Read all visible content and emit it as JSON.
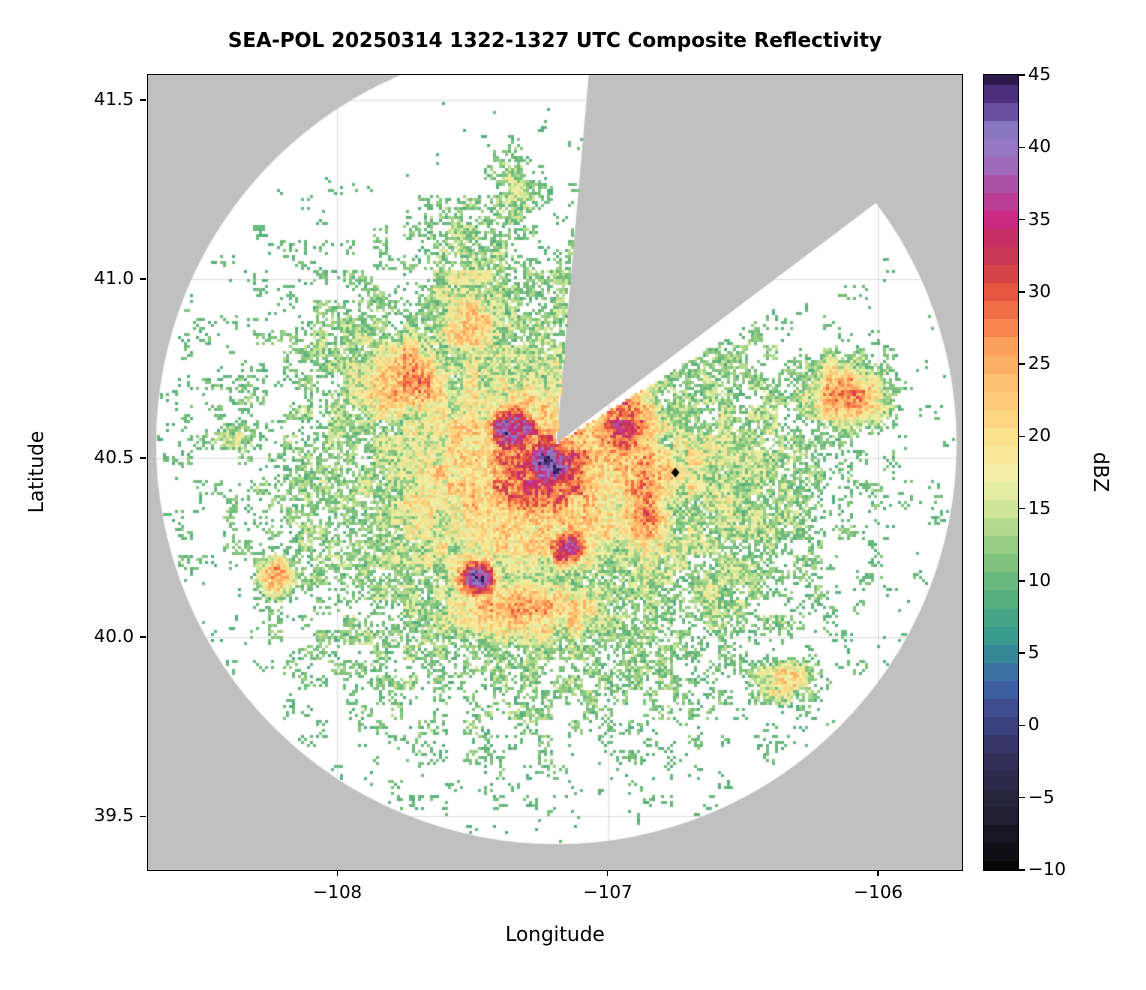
{
  "chart_data": {
    "type": "heatmap",
    "title": "SEA-POL 20250314 1322-1327 UTC Composite Reflectivity",
    "xlabel": "Longitude",
    "ylabel": "Latitude",
    "xlim": [
      -108.7,
      -105.69
    ],
    "ylim": [
      39.35,
      41.57
    ],
    "xticks": [
      -108,
      -107,
      -106
    ],
    "yticks": [
      39.5,
      40.0,
      40.5,
      41.0,
      41.5
    ],
    "grid": true,
    "background_outside_scan": "#c0c0c0",
    "background_scanned": "#ffffff",
    "radar": {
      "center_lon": -107.19,
      "center_lat": 40.54,
      "range_deg_lon": 1.48,
      "missing_sector_azimuth_deg": [
        5,
        53
      ],
      "clear_sliver_azimuth_deg": [
        53,
        58
      ]
    },
    "marker": {
      "lon": -106.75,
      "lat": 40.46,
      "symbol": "diamond",
      "color": "#000000"
    },
    "colorbar": {
      "label": "dBZ",
      "min": -10,
      "max": 45,
      "band_step_dbz": 1.25,
      "ticks": [
        45,
        40,
        35,
        30,
        25,
        20,
        15,
        10,
        5,
        0,
        -5,
        -10
      ],
      "stops": [
        [
          -10,
          "#070707"
        ],
        [
          -6,
          "#221f33"
        ],
        [
          -2,
          "#34315c"
        ],
        [
          1,
          "#3e4a8e"
        ],
        [
          3,
          "#3c66a8"
        ],
        [
          6,
          "#35998f"
        ],
        [
          9,
          "#57b07c"
        ],
        [
          12,
          "#8cc87f"
        ],
        [
          15,
          "#cfe69a"
        ],
        [
          17,
          "#f0f0aa"
        ],
        [
          20,
          "#fbe18c"
        ],
        [
          23,
          "#fdc775"
        ],
        [
          26,
          "#fca55f"
        ],
        [
          28,
          "#f67d4a"
        ],
        [
          30,
          "#e65540"
        ],
        [
          32,
          "#c93a4d"
        ],
        [
          34,
          "#c52d68"
        ],
        [
          35,
          "#cb2b83"
        ],
        [
          37,
          "#b3479f"
        ],
        [
          39,
          "#9b6fbd"
        ],
        [
          41,
          "#8f7fc6"
        ],
        [
          43,
          "#5e3d96"
        ],
        [
          45,
          "#2f1a4e"
        ]
      ]
    },
    "echo_threshold_dbz": 9,
    "noise_amp_dbz": 8.5,
    "storm_cells": [
      {
        "lon": -107.22,
        "lat": 40.48,
        "sx": 0.1,
        "sy": 0.07,
        "peak": 44
      },
      {
        "lon": -107.35,
        "lat": 40.58,
        "sx": 0.09,
        "sy": 0.07,
        "peak": 40
      },
      {
        "lon": -107.25,
        "lat": 40.47,
        "sx": 0.24,
        "sy": 0.16,
        "peak": 33
      },
      {
        "lon": -107.3,
        "lat": 40.45,
        "sx": 0.5,
        "sy": 0.33,
        "peak": 24
      },
      {
        "lon": -107.25,
        "lat": 40.42,
        "sx": 0.85,
        "sy": 0.52,
        "peak": 16
      },
      {
        "lon": -107.75,
        "lat": 40.72,
        "sx": 0.18,
        "sy": 0.11,
        "peak": 26
      },
      {
        "lon": -107.95,
        "lat": 40.8,
        "sx": 0.2,
        "sy": 0.1,
        "peak": 13
      },
      {
        "lon": -107.5,
        "lat": 40.88,
        "sx": 0.16,
        "sy": 0.13,
        "peak": 20
      },
      {
        "lon": -107.5,
        "lat": 41.02,
        "sx": 0.16,
        "sy": 0.16,
        "peak": 15
      },
      {
        "lon": -107.35,
        "lat": 41.25,
        "sx": 0.09,
        "sy": 0.1,
        "peak": 13
      },
      {
        "lon": -106.95,
        "lat": 40.6,
        "sx": 0.12,
        "sy": 0.15,
        "peak": 31
      },
      {
        "lon": -106.87,
        "lat": 40.42,
        "sx": 0.09,
        "sy": 0.22,
        "peak": 28
      },
      {
        "lon": -106.55,
        "lat": 40.45,
        "sx": 0.3,
        "sy": 0.24,
        "peak": 15
      },
      {
        "lon": -106.12,
        "lat": 40.68,
        "sx": 0.13,
        "sy": 0.08,
        "peak": 27
      },
      {
        "lon": -106.6,
        "lat": 40.15,
        "sx": 0.2,
        "sy": 0.11,
        "peak": 14
      },
      {
        "lon": -107.48,
        "lat": 40.16,
        "sx": 0.07,
        "sy": 0.05,
        "peak": 40
      },
      {
        "lon": -107.15,
        "lat": 40.25,
        "sx": 0.07,
        "sy": 0.05,
        "peak": 36
      },
      {
        "lon": -107.3,
        "lat": 40.08,
        "sx": 0.3,
        "sy": 0.09,
        "peak": 24
      },
      {
        "lon": -108.22,
        "lat": 40.17,
        "sx": 0.06,
        "sy": 0.05,
        "peak": 26
      },
      {
        "lon": -108.38,
        "lat": 40.56,
        "sx": 0.1,
        "sy": 0.04,
        "peak": 13
      },
      {
        "lon": -106.35,
        "lat": 39.88,
        "sx": 0.1,
        "sy": 0.05,
        "peak": 22
      },
      {
        "lon": -106.75,
        "lat": 40.46,
        "sx": 0.15,
        "sy": 0.12,
        "peak": 20
      }
    ]
  }
}
